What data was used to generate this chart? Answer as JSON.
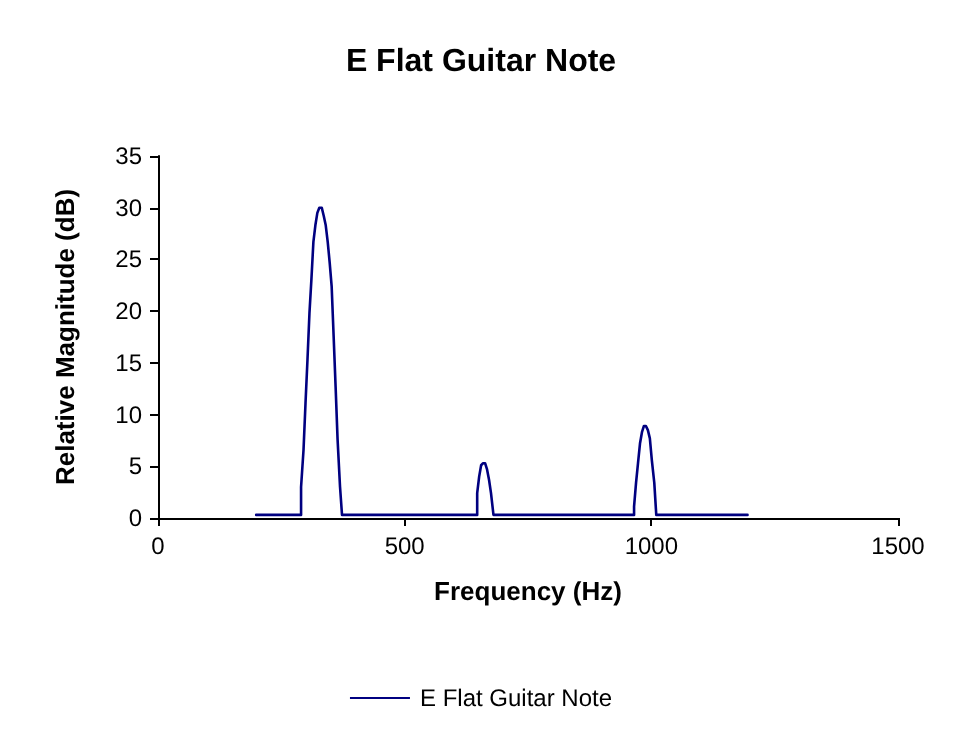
{
  "chart_data": {
    "type": "line",
    "title": "E Flat Guitar Note",
    "xlabel": "Frequency (Hz)",
    "ylabel": "Relative Magnitude (dB)",
    "xlim": [
      0,
      1500
    ],
    "xticks": [
      0,
      500,
      1000,
      1500
    ],
    "ylim": [
      0,
      35
    ],
    "yticks": [
      0,
      5,
      10,
      15,
      20,
      25,
      30,
      35
    ],
    "grid": false,
    "legend": "bottom",
    "marker": "none",
    "line_style": "solid",
    "series": [
      {
        "name": "E Flat Guitar Note",
        "color": "#000080",
        "x": [
          199,
          290,
          290,
          295,
          299,
          303,
          307,
          311,
          315,
          319,
          323,
          327,
          332,
          336,
          340,
          344,
          348,
          352,
          356,
          360,
          364,
          369,
          373,
          647,
          647,
          651,
          655,
          659,
          663,
          667,
          671,
          675,
          680,
          965,
          965,
          969,
          973,
          977,
          981,
          985,
          989,
          993,
          997,
          1001,
          1006,
          1010,
          1195
        ],
        "values": [
          0.3,
          0.3,
          3.0,
          6.6,
          11.1,
          15.3,
          19.8,
          23.1,
          26.7,
          28.3,
          29.5,
          30.0,
          30.0,
          29.2,
          28.3,
          26.7,
          24.7,
          22.4,
          17.6,
          12.7,
          7.6,
          3.0,
          0.3,
          0.3,
          2.4,
          4.0,
          5.1,
          5.3,
          5.3,
          4.7,
          3.7,
          2.4,
          0.3,
          0.3,
          1.1,
          3.4,
          5.3,
          7.2,
          8.3,
          8.9,
          8.9,
          8.5,
          7.7,
          5.6,
          3.4,
          0.3,
          0.3
        ]
      }
    ]
  }
}
